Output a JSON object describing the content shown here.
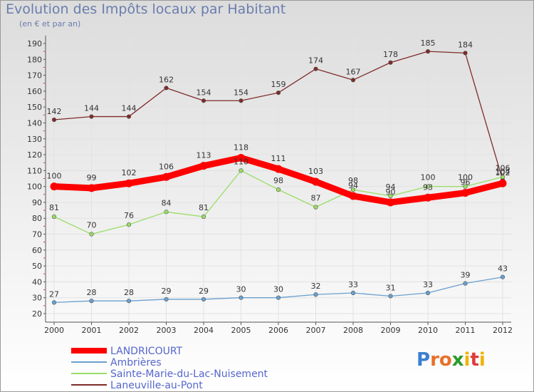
{
  "colors": {
    "LANDRICOURT": "#ff0000",
    "Ambrieres": "#6aa0cf",
    "Sainte": "#99dd66",
    "Laneuville": "#7f2b2b"
  },
  "logo": {
    "letters": [
      "P",
      "r",
      "o",
      "x",
      "i",
      "t",
      "i"
    ],
    "colors": [
      "#3a7fd0",
      "#e8702a",
      "#e8702a",
      "#2a9a2a",
      "#f0b400",
      "#e03a3a",
      "#f0b400"
    ]
  },
  "chart_data": {
    "type": "line",
    "title": "Evolution des Impôts locaux par Habitant",
    "subtitle": "(en € et par an)",
    "xlabel": "",
    "ylabel": "",
    "ylim": [
      20,
      190
    ],
    "yticks": [
      20,
      30,
      40,
      50,
      60,
      70,
      80,
      90,
      100,
      110,
      120,
      130,
      140,
      150,
      160,
      170,
      180,
      190
    ],
    "categories": [
      "2000",
      "2001",
      "2002",
      "2003",
      "2004",
      "2005",
      "2006",
      "2007",
      "2008",
      "2009",
      "2010",
      "2011",
      "2012"
    ],
    "grid": true,
    "legend_position": "bottom-left",
    "series": [
      {
        "key": "Laneuville",
        "name": "Laneuville-au-Pont",
        "values": [
          142,
          144,
          144,
          162,
          154,
          154,
          159,
          174,
          167,
          178,
          185,
          184,
          104
        ]
      },
      {
        "key": "Ambrieres",
        "name": "Ambrières",
        "values": [
          27,
          28,
          28,
          29,
          29,
          30,
          30,
          32,
          33,
          31,
          33,
          39,
          43
        ]
      },
      {
        "key": "Sainte",
        "name": "Sainte-Marie-du-Lac-Nuisement",
        "values": [
          81,
          70,
          76,
          84,
          81,
          110,
          98,
          87,
          98,
          94,
          100,
          100,
          106
        ]
      },
      {
        "key": "LANDRICOURT",
        "name": "LANDRICOURT",
        "values": [
          100,
          99,
          102,
          106,
          113,
          118,
          111,
          103,
          94,
          90,
          93,
          96,
          102
        ]
      }
    ],
    "legend_order": [
      "LANDRICOURT",
      "Ambrieres",
      "Sainte",
      "Laneuville"
    ]
  }
}
